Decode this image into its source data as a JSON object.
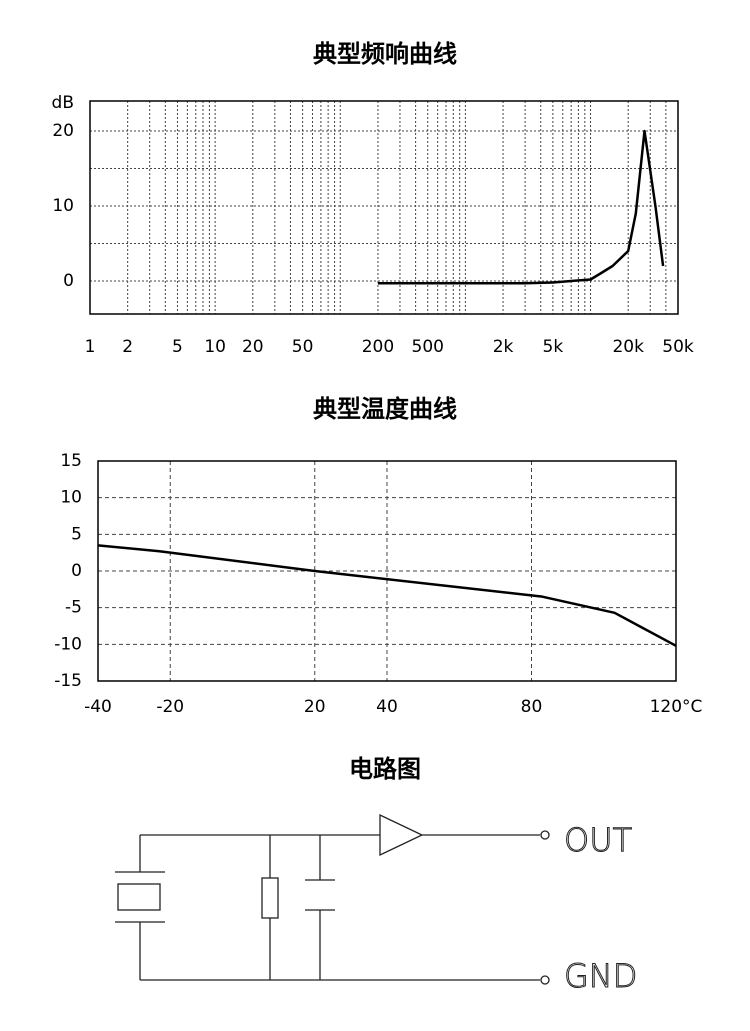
{
  "chart_data": [
    {
      "type": "line",
      "title": "典型频响曲线",
      "y_label": "dB",
      "xscale": "log",
      "color": "#000000",
      "x": [
        200,
        500,
        1000,
        2000,
        3000,
        5000,
        7000,
        10000,
        12000,
        15000,
        20000,
        23000,
        27000,
        33000,
        38000
      ],
      "values": [
        -0.3,
        -0.3,
        -0.3,
        -0.3,
        -0.3,
        -0.2,
        0,
        0.2,
        1,
        2,
        4,
        9,
        20,
        10,
        2
      ],
      "xlim": [
        1,
        50000
      ],
      "xticks": [
        1,
        2,
        5,
        10,
        20,
        50,
        200,
        500,
        {
          "value": 2000,
          "label": "2k"
        },
        {
          "value": 5000,
          "label": "5k"
        },
        {
          "value": 20000,
          "label": "20k"
        },
        {
          "value": 50000,
          "label": "50k"
        }
      ],
      "xgrid": [
        1,
        2,
        3,
        4,
        5,
        6,
        7,
        8,
        9,
        10,
        20,
        30,
        40,
        50,
        60,
        70,
        80,
        90,
        100,
        200,
        300,
        400,
        500,
        600,
        700,
        800,
        900,
        1000,
        2000,
        3000,
        4000,
        5000,
        6000,
        7000,
        8000,
        9000,
        10000,
        20000,
        30000,
        40000,
        50000
      ],
      "ylim": [
        -4.4,
        24
      ],
      "yticks": [
        0,
        10,
        20
      ],
      "ygrid": [
        0,
        5,
        10,
        15,
        20
      ],
      "grid": "dotted"
    },
    {
      "type": "line",
      "xscale": "linear",
      "title": "典型温度曲线",
      "color": "#000000",
      "x": [
        -40,
        -23,
        20,
        83,
        103,
        120
      ],
      "values": [
        3.5,
        2.7,
        0,
        -3.5,
        -5.7,
        -10.2
      ],
      "xlim": [
        -40,
        120
      ],
      "xticks": [
        -40,
        -20,
        20,
        40,
        80,
        {
          "value": 120,
          "label": "120°C"
        }
      ],
      "xgrid": [
        -20,
        20,
        40,
        80
      ],
      "ylim": [
        -15,
        15
      ],
      "yticks": [
        15,
        10,
        5,
        0,
        -5,
        -10,
        -15
      ],
      "ygrid": [
        10,
        5,
        0,
        -5,
        -10
      ],
      "grid": "dashed"
    }
  ],
  "circuit": {
    "title": "电路图",
    "labels": [
      "OUT",
      "GND"
    ]
  }
}
